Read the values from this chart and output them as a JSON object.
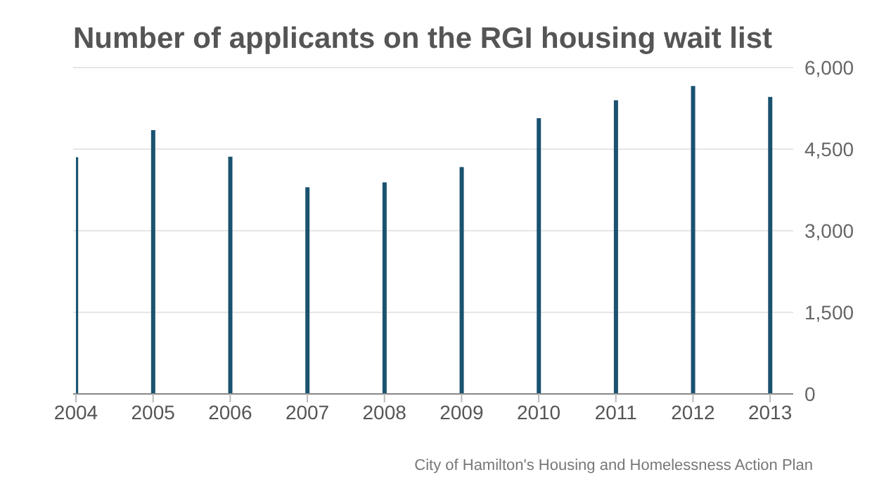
{
  "chart_data": {
    "type": "bar",
    "title": "Number of applicants on the RGI housing wait list",
    "categories": [
      "2004",
      "2005",
      "2006",
      "2007",
      "2008",
      "2009",
      "2010",
      "2011",
      "2012",
      "2013"
    ],
    "values": [
      4350,
      4850,
      4360,
      3800,
      3890,
      4170,
      5070,
      5400,
      5660,
      5460
    ],
    "color": "#1a5270",
    "ylim": [
      0,
      6000
    ],
    "yticks": [
      0,
      {
        "value": 1500,
        "label": "1,500"
      },
      {
        "value": 3000,
        "label": "3,000"
      },
      {
        "value": 4500,
        "label": "4,500"
      },
      {
        "value": 6000,
        "label": "6,000"
      }
    ],
    "grid": "y",
    "annotations": [
      "City of Hamilton's Housing and Homelessness Action Plan"
    ]
  }
}
